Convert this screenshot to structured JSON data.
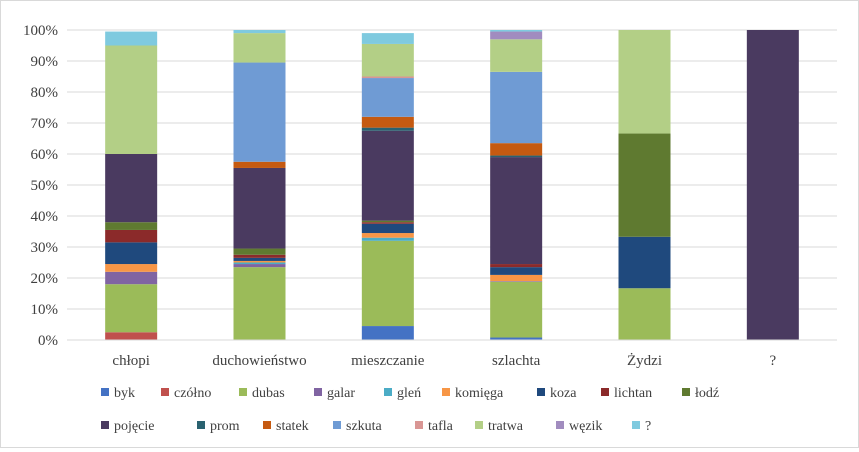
{
  "chart_data": {
    "type": "bar",
    "stacked": "percent",
    "categories": [
      "chłopi",
      "duchowieństwo",
      "mieszczanie",
      "szlachta",
      "Żydzi",
      "?"
    ],
    "y_ticks": [
      "0%",
      "10%",
      "20%",
      "30%",
      "40%",
      "50%",
      "60%",
      "70%",
      "80%",
      "90%",
      "100%"
    ],
    "ylim": [
      0,
      100
    ],
    "grid": true,
    "legend_position": "bottom",
    "series": [
      {
        "name": "byk",
        "color": "#4472c4",
        "values": [
          0,
          0,
          4.5,
          0.8,
          0,
          0
        ]
      },
      {
        "name": "czółno",
        "color": "#c0504d",
        "values": [
          2.5,
          0,
          0,
          0,
          0,
          0
        ]
      },
      {
        "name": "dubas",
        "color": "#9bbb59",
        "values": [
          15.5,
          23.5,
          27.5,
          18,
          16.7,
          0
        ]
      },
      {
        "name": "galar",
        "color": "#8064a2",
        "values": [
          4,
          1,
          0,
          0.2,
          0,
          0
        ]
      },
      {
        "name": "gleń",
        "color": "#4bacc6",
        "values": [
          0,
          0.5,
          1,
          0,
          0,
          0
        ]
      },
      {
        "name": "komięga",
        "color": "#f79646",
        "values": [
          2.5,
          0.5,
          1.5,
          2,
          0,
          0
        ]
      },
      {
        "name": "koza",
        "color": "#1f497d",
        "values": [
          7,
          1,
          3,
          2.5,
          16.6,
          0
        ]
      },
      {
        "name": "lichtan",
        "color": "#8b2a2a",
        "values": [
          4,
          1,
          0.5,
          1,
          0,
          0
        ]
      },
      {
        "name": "łodź",
        "color": "#5f7a30",
        "values": [
          2.5,
          2,
          0.5,
          0,
          33.3,
          0
        ]
      },
      {
        "name": "pojęcie",
        "color": "#4a3a60",
        "values": [
          22,
          26,
          29,
          34.5,
          0,
          100
        ]
      },
      {
        "name": "prom",
        "color": "#2a6270",
        "values": [
          0,
          0,
          1,
          0.5,
          0,
          0
        ]
      },
      {
        "name": "statek",
        "color": "#c55a11",
        "values": [
          0,
          2,
          3.5,
          4,
          0,
          0
        ]
      },
      {
        "name": "szkuta",
        "color": "#6f9bd4",
        "values": [
          0,
          32,
          12.5,
          23,
          0,
          0
        ]
      },
      {
        "name": "tafla",
        "color": "#d99694",
        "values": [
          0,
          0,
          0.5,
          0,
          0,
          0
        ]
      },
      {
        "name": "tratwa",
        "color": "#b3cf86",
        "values": [
          35,
          9.5,
          10.5,
          10.5,
          33.4,
          0
        ]
      },
      {
        "name": "węzik",
        "color": "#a18cbf",
        "values": [
          0,
          0,
          0,
          2.5,
          0,
          0
        ]
      },
      {
        "name": "?",
        "color": "#7fcadf",
        "values": [
          4.5,
          1,
          3.5,
          0.5,
          0,
          0
        ]
      }
    ]
  }
}
